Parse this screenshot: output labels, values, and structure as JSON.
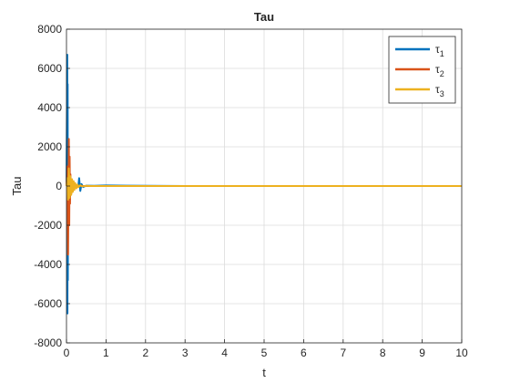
{
  "chart_data": {
    "type": "line",
    "title": "Tau",
    "xlabel": "t",
    "ylabel": "Tau",
    "xlim": [
      0,
      10
    ],
    "ylim": [
      -8000,
      8000
    ],
    "xticks": [
      0,
      1,
      2,
      3,
      4,
      5,
      6,
      7,
      8,
      9,
      10
    ],
    "yticks": [
      -8000,
      -6000,
      -4000,
      -2000,
      0,
      2000,
      4000,
      6000,
      8000
    ],
    "grid": true,
    "legend_position": "top-right",
    "series": [
      {
        "name": "τ1",
        "name_base": "τ",
        "name_sub": "1",
        "color": "#0072BD",
        "x": [
          0,
          0.02,
          0.025,
          0.03,
          0.035,
          0.04,
          0.06,
          0.08,
          0.1,
          0.12,
          0.15,
          0.2,
          0.25,
          0.3,
          0.32,
          0.35,
          0.38,
          0.42,
          0.5,
          0.7,
          1.0,
          1.5,
          2.0,
          2.5,
          3.0,
          4.0,
          5.0,
          6.0,
          7.0,
          8.0,
          9.0,
          10.0
        ],
        "y": [
          0,
          6700,
          -6500,
          5200,
          -4800,
          2000,
          -1200,
          600,
          -300,
          150,
          -100,
          80,
          -60,
          0,
          400,
          -250,
          100,
          -50,
          20,
          10,
          30,
          15,
          10,
          5,
          0,
          0,
          0,
          0,
          0,
          0,
          0,
          0
        ]
      },
      {
        "name": "τ2",
        "name_base": "τ",
        "name_sub": "2",
        "color": "#D95319",
        "x": [
          0,
          0.02,
          0.04,
          0.06,
          0.07,
          0.08,
          0.09,
          0.1,
          0.12,
          0.14,
          0.16,
          0.18,
          0.2,
          0.25,
          0.3,
          0.35,
          0.4,
          0.5,
          0.7,
          1.0,
          1.5,
          2.0,
          3.0,
          4.0,
          5.0,
          6.0,
          7.0,
          8.0,
          9.0,
          10.0
        ],
        "y": [
          0,
          1000,
          -3500,
          2400,
          -2000,
          1500,
          -900,
          600,
          -400,
          250,
          -150,
          100,
          -60,
          40,
          -20,
          10,
          5,
          0,
          0,
          0,
          0,
          0,
          0,
          0,
          0,
          0,
          0,
          0,
          0,
          0
        ]
      },
      {
        "name": "τ3",
        "name_base": "τ",
        "name_sub": "3",
        "color": "#EDB120",
        "x": [
          0,
          0.02,
          0.04,
          0.06,
          0.08,
          0.1,
          0.12,
          0.14,
          0.16,
          0.18,
          0.2,
          0.22,
          0.25,
          0.28,
          0.3,
          0.35,
          0.4,
          0.5,
          0.6,
          0.8,
          1.0,
          1.5,
          2.0,
          3.0,
          4.0,
          5.0,
          6.0,
          7.0,
          8.0,
          9.0,
          10.0
        ],
        "y": [
          0,
          400,
          -700,
          900,
          -600,
          500,
          -450,
          350,
          -300,
          250,
          -200,
          150,
          -120,
          80,
          -60,
          40,
          -20,
          10,
          0,
          0,
          0,
          0,
          0,
          0,
          0,
          0,
          0,
          0,
          0,
          0,
          0
        ]
      }
    ]
  }
}
